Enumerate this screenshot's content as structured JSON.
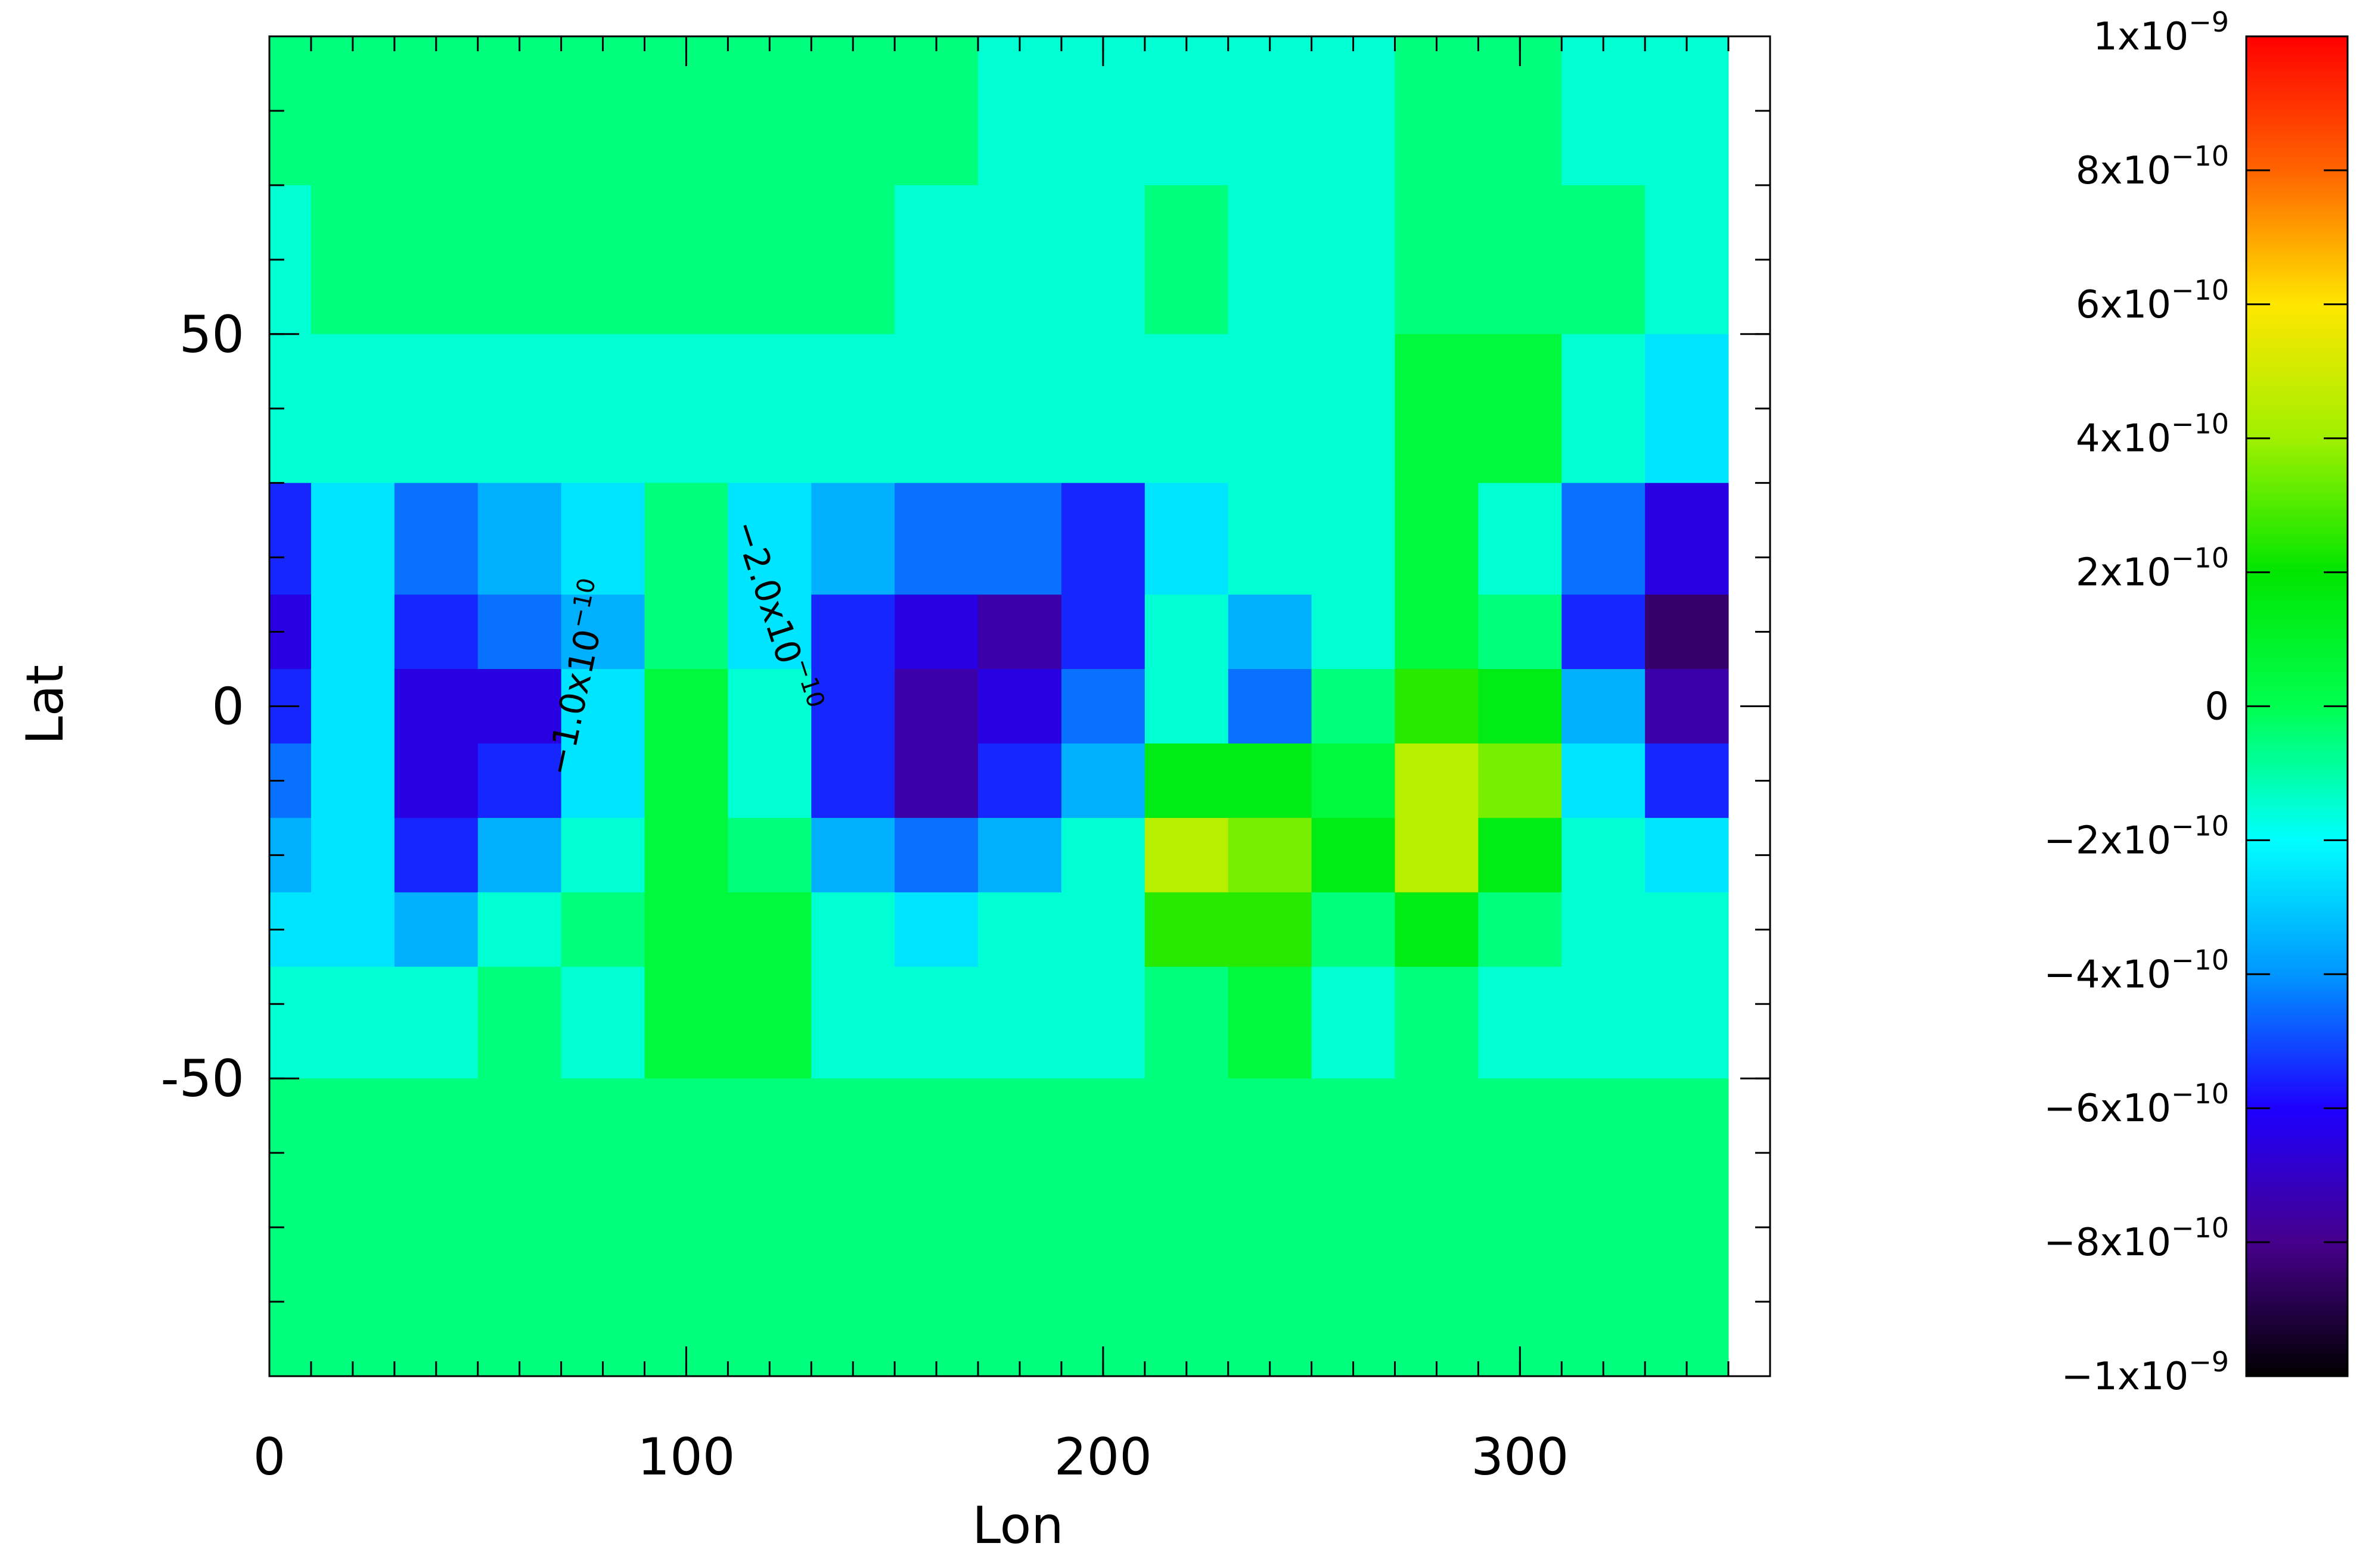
{
  "chart_data": {
    "type": "contour",
    "xlabel": "Lon",
    "ylabel": "Lat",
    "xlim": [
      0,
      360
    ],
    "ylim": [
      -90,
      90
    ],
    "xticks": [
      0,
      100,
      200,
      300
    ],
    "yticks": [
      -50,
      0,
      50
    ],
    "x": [
      0,
      20,
      40,
      60,
      80,
      100,
      120,
      140,
      160,
      180,
      200,
      220,
      240,
      260,
      280,
      300,
      320,
      340
    ],
    "y": [
      80,
      60,
      40,
      20,
      10,
      0,
      -10,
      -20,
      -30,
      -40,
      -60,
      -80
    ],
    "z": [
      [
        -5e-11,
        -5e-11,
        -5e-11,
        -5e-11,
        -5e-11,
        -5e-11,
        -5e-11,
        -5e-11,
        -5e-11,
        -1.5e-10,
        -1.5e-10,
        -1.5e-10,
        -1.5e-10,
        -1.5e-10,
        -5e-11,
        -5e-11,
        -1.5e-10,
        -1.5e-10
      ],
      [
        -1.5e-10,
        -5e-11,
        -5e-11,
        -5e-11,
        -5e-11,
        -5e-11,
        -5e-11,
        -5e-11,
        -1.5e-10,
        -1.5e-10,
        -1.5e-10,
        -5e-11,
        -1.5e-10,
        -1.5e-10,
        -5e-11,
        -5e-11,
        -5e-11,
        -1.5e-10
      ],
      [
        -1.5e-10,
        -1.5e-10,
        -1.5e-10,
        -1.5e-10,
        -1.5e-10,
        -1.5e-10,
        -1.5e-10,
        -1.5e-10,
        -1.5e-10,
        -1.5e-10,
        -1.5e-10,
        -1.5e-10,
        -1.5e-10,
        -1.5e-10,
        5e-11,
        5e-11,
        -1.5e-10,
        -2.5e-10
      ],
      [
        -5.5e-10,
        -2.5e-10,
        -4.5e-10,
        -3.5e-10,
        -2.5e-10,
        -5e-11,
        -2.5e-10,
        -3.5e-10,
        -4.5e-10,
        -4.5e-10,
        -5.5e-10,
        -2.5e-10,
        -1.5e-10,
        -1.5e-10,
        5e-11,
        -1.5e-10,
        -4.5e-10,
        -6.5e-10
      ],
      [
        -6.5e-10,
        -2.5e-10,
        -5.5e-10,
        -4.5e-10,
        -3.5e-10,
        -5e-11,
        -2.5e-10,
        -5.5e-10,
        -6.5e-10,
        -7.5e-10,
        -5.5e-10,
        -1.5e-10,
        -3.5e-10,
        -1.5e-10,
        5e-11,
        -5e-11,
        -5.5e-10,
        -8.5e-10
      ],
      [
        -5.5e-10,
        -2.5e-10,
        -6.5e-10,
        -6.5e-10,
        -2.5e-10,
        5e-11,
        -1.5e-10,
        -5.5e-10,
        -7.5e-10,
        -6.5e-10,
        -4.5e-10,
        -1.5e-10,
        -4.5e-10,
        -5e-11,
        2.5e-10,
        1.5e-10,
        -3.5e-10,
        -7.5e-10
      ],
      [
        -4.5e-10,
        -2.5e-10,
        -6.5e-10,
        -5.5e-10,
        -2.5e-10,
        5e-11,
        -1.5e-10,
        -5.5e-10,
        -7.5e-10,
        -5.5e-10,
        -3.5e-10,
        1.5e-10,
        1.5e-10,
        5e-11,
        4.5e-10,
        3.5e-10,
        -2.5e-10,
        -5.5e-10
      ],
      [
        -3.5e-10,
        -2.5e-10,
        -5.5e-10,
        -3.5e-10,
        -1.5e-10,
        5e-11,
        -5e-11,
        -3.5e-10,
        -4.5e-10,
        -3.5e-10,
        -1.5e-10,
        4.5e-10,
        3.5e-10,
        1.5e-10,
        4.5e-10,
        1.5e-10,
        -1.5e-10,
        -2.5e-10
      ],
      [
        -2.5e-10,
        -2.5e-10,
        -3.5e-10,
        -1.5e-10,
        -5e-11,
        5e-11,
        5e-11,
        -1.5e-10,
        -2.5e-10,
        -1.5e-10,
        -1.5e-10,
        2.5e-10,
        2.5e-10,
        -5e-11,
        1.5e-10,
        -5e-11,
        -1.5e-10,
        -1.5e-10
      ],
      [
        -1.5e-10,
        -1.5e-10,
        -1.5e-10,
        -5e-11,
        -1.5e-10,
        5e-11,
        5e-11,
        -1.5e-10,
        -1.5e-10,
        -1.5e-10,
        -1.5e-10,
        -5e-11,
        5e-11,
        -1.5e-10,
        -5e-11,
        -1.5e-10,
        -1.5e-10,
        -1.5e-10
      ],
      [
        -5e-11,
        -5e-11,
        -5e-11,
        -5e-11,
        -5e-11,
        -5e-11,
        -5e-11,
        -5e-11,
        -5e-11,
        -5e-11,
        -5e-11,
        -5e-11,
        -5e-11,
        -5e-11,
        -5e-11,
        -5e-11,
        -5e-11,
        -5e-11
      ],
      [
        -5e-11,
        -5e-11,
        -5e-11,
        -5e-11,
        -5e-11,
        -5e-11,
        -5e-11,
        -5e-11,
        -5e-11,
        -5e-11,
        -5e-11,
        -5e-11,
        -5e-11,
        -5e-11,
        -5e-11,
        -5e-11,
        -5e-11,
        -5e-11
      ]
    ],
    "zlim": [
      -1e-09,
      1e-09
    ],
    "colormap": [
      "#000000",
      "#46008c",
      "#1e00ff",
      "#0096ff",
      "#00ffff",
      "#00ff50",
      "#00e600",
      "#a0f000",
      "#ffe600",
      "#ff6400",
      "#ff0000"
    ],
    "colorbar_ticks": [
      {
        "value": 1e-09,
        "label": "1x10",
        "exp": "−9"
      },
      {
        "value": 8e-10,
        "label": "8x10",
        "exp": "−10"
      },
      {
        "value": 6e-10,
        "label": "6x10",
        "exp": "−10"
      },
      {
        "value": 4e-10,
        "label": "4x10",
        "exp": "−10"
      },
      {
        "value": 2e-10,
        "label": "2x10",
        "exp": "−10"
      },
      0,
      {
        "value": -2e-10,
        "label": "−2x10",
        "exp": "−10"
      },
      {
        "value": -4e-10,
        "label": "−4x10",
        "exp": "−10"
      },
      {
        "value": -6e-10,
        "label": "−6x10",
        "exp": "−10"
      },
      {
        "value": -8e-10,
        "label": "−8x10",
        "exp": "−10"
      },
      {
        "value": -1e-09,
        "label": "−1x10",
        "exp": "−9"
      }
    ],
    "annotations": [
      {
        "text": "−2.0x10",
        "exp": "−10"
      },
      {
        "text": "−1.0x10",
        "exp": "−10"
      }
    ]
  }
}
